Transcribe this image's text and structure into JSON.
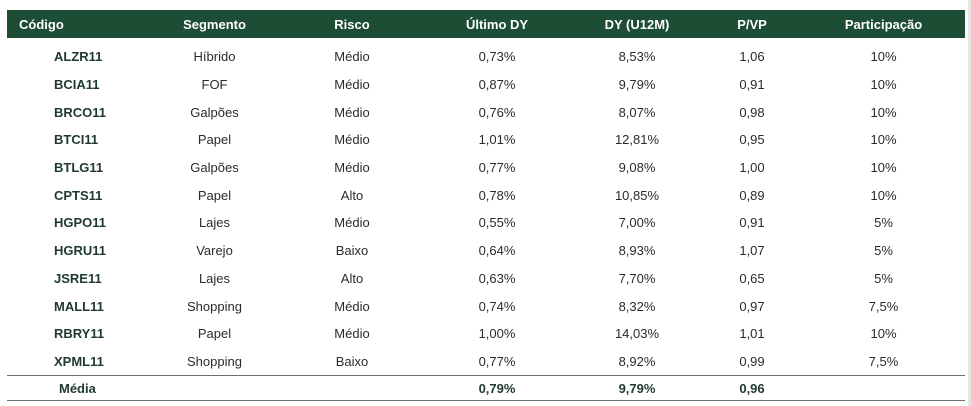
{
  "columns": [
    "Código",
    "Segmento",
    "Risco",
    "Último DY",
    "DY (U12M)",
    "P/VP",
    "Participação"
  ],
  "rows": [
    {
      "codigo": "ALZR11",
      "segmento": "Híbrido",
      "risco": "Médio",
      "ultimo_dy": "0,73%",
      "dy_u12m": "8,53%",
      "pvp": "1,06",
      "participacao": "10%"
    },
    {
      "codigo": "BCIA11",
      "segmento": "FOF",
      "risco": "Médio",
      "ultimo_dy": "0,87%",
      "dy_u12m": "9,79%",
      "pvp": "0,91",
      "participacao": "10%"
    },
    {
      "codigo": "BRCO11",
      "segmento": "Galpões",
      "risco": "Médio",
      "ultimo_dy": "0,76%",
      "dy_u12m": "8,07%",
      "pvp": "0,98",
      "participacao": "10%"
    },
    {
      "codigo": "BTCI11",
      "segmento": "Papel",
      "risco": "Médio",
      "ultimo_dy": "1,01%",
      "dy_u12m": "12,81%",
      "pvp": "0,95",
      "participacao": "10%"
    },
    {
      "codigo": "BTLG11",
      "segmento": "Galpões",
      "risco": "Médio",
      "ultimo_dy": "0,77%",
      "dy_u12m": "9,08%",
      "pvp": "1,00",
      "participacao": "10%"
    },
    {
      "codigo": "CPTS11",
      "segmento": "Papel",
      "risco": "Alto",
      "ultimo_dy": "0,78%",
      "dy_u12m": "10,85%",
      "pvp": "0,89",
      "participacao": "10%"
    },
    {
      "codigo": "HGPO11",
      "segmento": "Lajes",
      "risco": "Médio",
      "ultimo_dy": "0,55%",
      "dy_u12m": "7,00%",
      "pvp": "0,91",
      "participacao": "5%"
    },
    {
      "codigo": "HGRU11",
      "segmento": "Varejo",
      "risco": "Baixo",
      "ultimo_dy": "0,64%",
      "dy_u12m": "8,93%",
      "pvp": "1,07",
      "participacao": "5%"
    },
    {
      "codigo": "JSRE11",
      "segmento": "Lajes",
      "risco": "Alto",
      "ultimo_dy": "0,63%",
      "dy_u12m": "7,70%",
      "pvp": "0,65",
      "participacao": "5%"
    },
    {
      "codigo": "MALL11",
      "segmento": "Shopping",
      "risco": "Médio",
      "ultimo_dy": "0,74%",
      "dy_u12m": "8,32%",
      "pvp": "0,97",
      "participacao": "7,5%"
    },
    {
      "codigo": "RBRY11",
      "segmento": "Papel",
      "risco": "Médio",
      "ultimo_dy": "1,00%",
      "dy_u12m": "14,03%",
      "pvp": "1,01",
      "participacao": "10%"
    },
    {
      "codigo": "XPML11",
      "segmento": "Shopping",
      "risco": "Baixo",
      "ultimo_dy": "0,77%",
      "dy_u12m": "8,92%",
      "pvp": "0,99",
      "participacao": "7,5%"
    }
  ],
  "average": {
    "label": "Média",
    "ultimo_dy": "0,79%",
    "dy_u12m": "9,79%",
    "pvp": "0,96"
  },
  "colors": {
    "header_bg": "#1e4d36",
    "header_text": "#ffffff",
    "code_text": "#1f3a2d"
  }
}
